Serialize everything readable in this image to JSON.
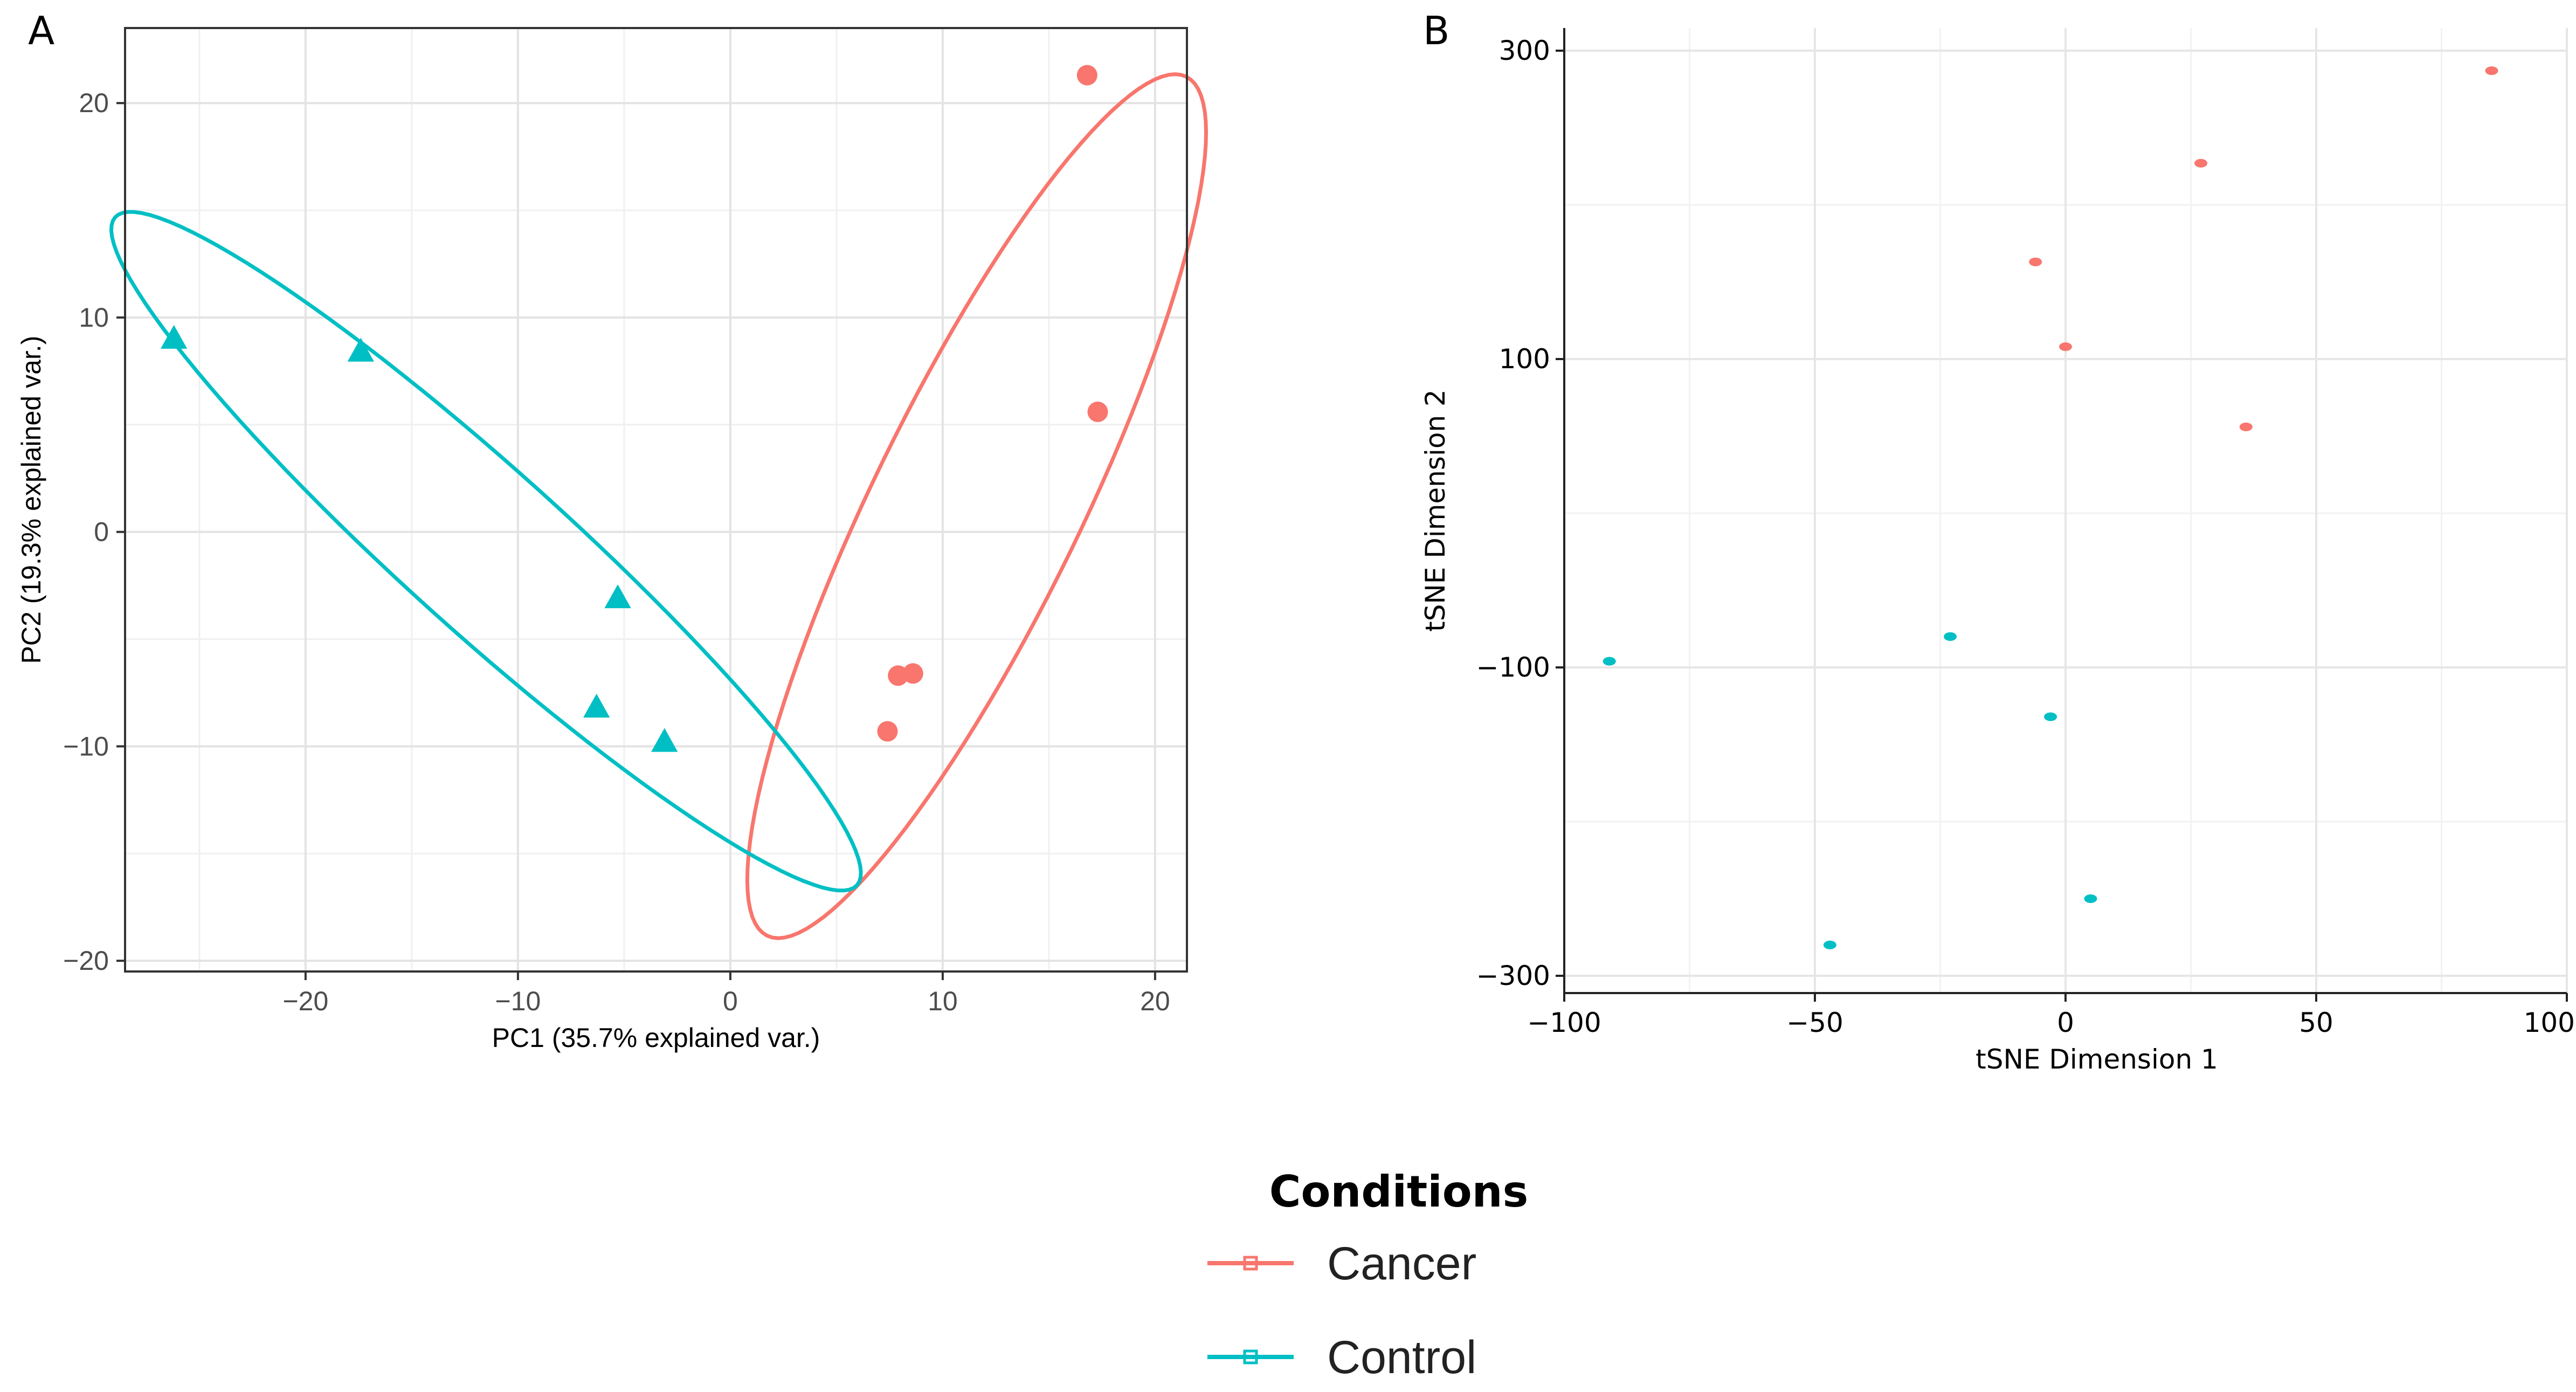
{
  "chart_data": [
    {
      "panel": "A",
      "type": "scatter",
      "xlabel": "PC1 (35.7% explained var.)",
      "ylabel": "PC2 (19.3% explained var.)",
      "xlim": [
        -28.5,
        21.5
      ],
      "ylim": [
        -20.5,
        23.5
      ],
      "xticks": [
        -20,
        -10,
        0,
        10,
        20
      ],
      "yticks": [
        -20,
        -10,
        0,
        10,
        20
      ],
      "xtick_labels": [
        "−20",
        "−10",
        "0",
        "10",
        "20"
      ],
      "ytick_labels": [
        "−20",
        "−10",
        "0",
        "10",
        "20"
      ],
      "grid": true,
      "series": [
        {
          "name": "Cancer",
          "color": "#F8766D",
          "marker": "circle",
          "points": [
            [
              16.8,
              21.3
            ],
            [
              17.3,
              5.6
            ],
            [
              7.9,
              -6.7
            ],
            [
              8.6,
              -6.6
            ],
            [
              7.4,
              -9.3
            ]
          ],
          "ellipse": {
            "cx": 11.6,
            "cy": 1.2,
            "rx": 22.5,
            "ry": 4.9,
            "angle_deg": 64
          }
        },
        {
          "name": "Control",
          "color": "#00BFC4",
          "marker": "triangle",
          "points": [
            [
              -26.2,
              9.0
            ],
            [
              -17.4,
              8.4
            ],
            [
              -5.3,
              -3.1
            ],
            [
              -6.3,
              -8.2
            ],
            [
              -3.1,
              -9.8
            ]
          ],
          "ellipse": {
            "cx": -11.5,
            "cy": -0.9,
            "rx": 23.5,
            "ry": 3.8,
            "angle_deg": -42
          }
        }
      ]
    },
    {
      "panel": "B",
      "type": "scatter",
      "xlabel": "tSNE Dimension 1",
      "ylabel": "tSNE Dimension 2",
      "xlim": [
        -100,
        100
      ],
      "ylim": [
        -300,
        300
      ],
      "xticks": [
        -100,
        -50,
        0,
        50,
        100
      ],
      "yticks": [
        -300,
        -100,
        100,
        300
      ],
      "xtick_labels": [
        "−100",
        "−50",
        "0",
        "50",
        "100"
      ],
      "ytick_labels": [
        "−300",
        "−100",
        "100",
        "300"
      ],
      "grid": true,
      "series": [
        {
          "name": "Cancer",
          "color": "#F8766D",
          "points": [
            [
              85,
              287
            ],
            [
              27,
              227
            ],
            [
              -6,
              163
            ],
            [
              0,
              108
            ],
            [
              36,
              56
            ]
          ]
        },
        {
          "name": "Control",
          "color": "#00BFC4",
          "points": [
            [
              -91,
              -96
            ],
            [
              -23,
              -80
            ],
            [
              -3,
              -132
            ],
            [
              5,
              -250
            ],
            [
              -47,
              -280
            ]
          ]
        }
      ]
    }
  ],
  "legend": {
    "title": "Conditions",
    "items": [
      {
        "label": "Cancer",
        "color": "#F8766D"
      },
      {
        "label": "Control",
        "color": "#00BFC4"
      }
    ]
  },
  "panels": {
    "a_letter": "A",
    "b_letter": "B"
  }
}
